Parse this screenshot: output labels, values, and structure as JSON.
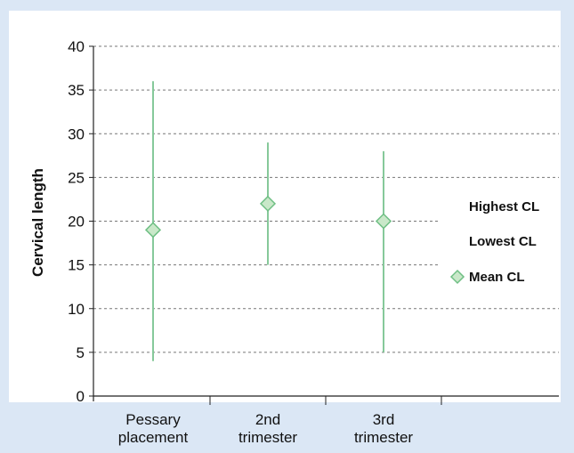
{
  "chart_data": {
    "type": "high-low-mean",
    "title": "",
    "xlabel": "",
    "ylabel": "Cervical length",
    "ylim": [
      0,
      40
    ],
    "yticks": [
      0,
      5,
      10,
      15,
      20,
      25,
      30,
      35,
      40
    ],
    "grid": true,
    "legend_position": "right",
    "categories": [
      [
        "Pessary",
        "placement"
      ],
      [
        "2nd",
        "trimester"
      ],
      [
        "3rd",
        "trimester"
      ]
    ],
    "series": [
      {
        "name": "Highest CL",
        "values": [
          36,
          29,
          28
        ]
      },
      {
        "name": "Lowest CL",
        "values": [
          4,
          15,
          5
        ]
      },
      {
        "name": "Mean CL",
        "values": [
          19,
          22,
          20
        ]
      }
    ],
    "colors": {
      "range_line": "#86c99a",
      "marker_fill": "#c9e8c9",
      "marker_stroke": "#6fbf84",
      "grid": "#777777",
      "axis": "#222222"
    }
  }
}
